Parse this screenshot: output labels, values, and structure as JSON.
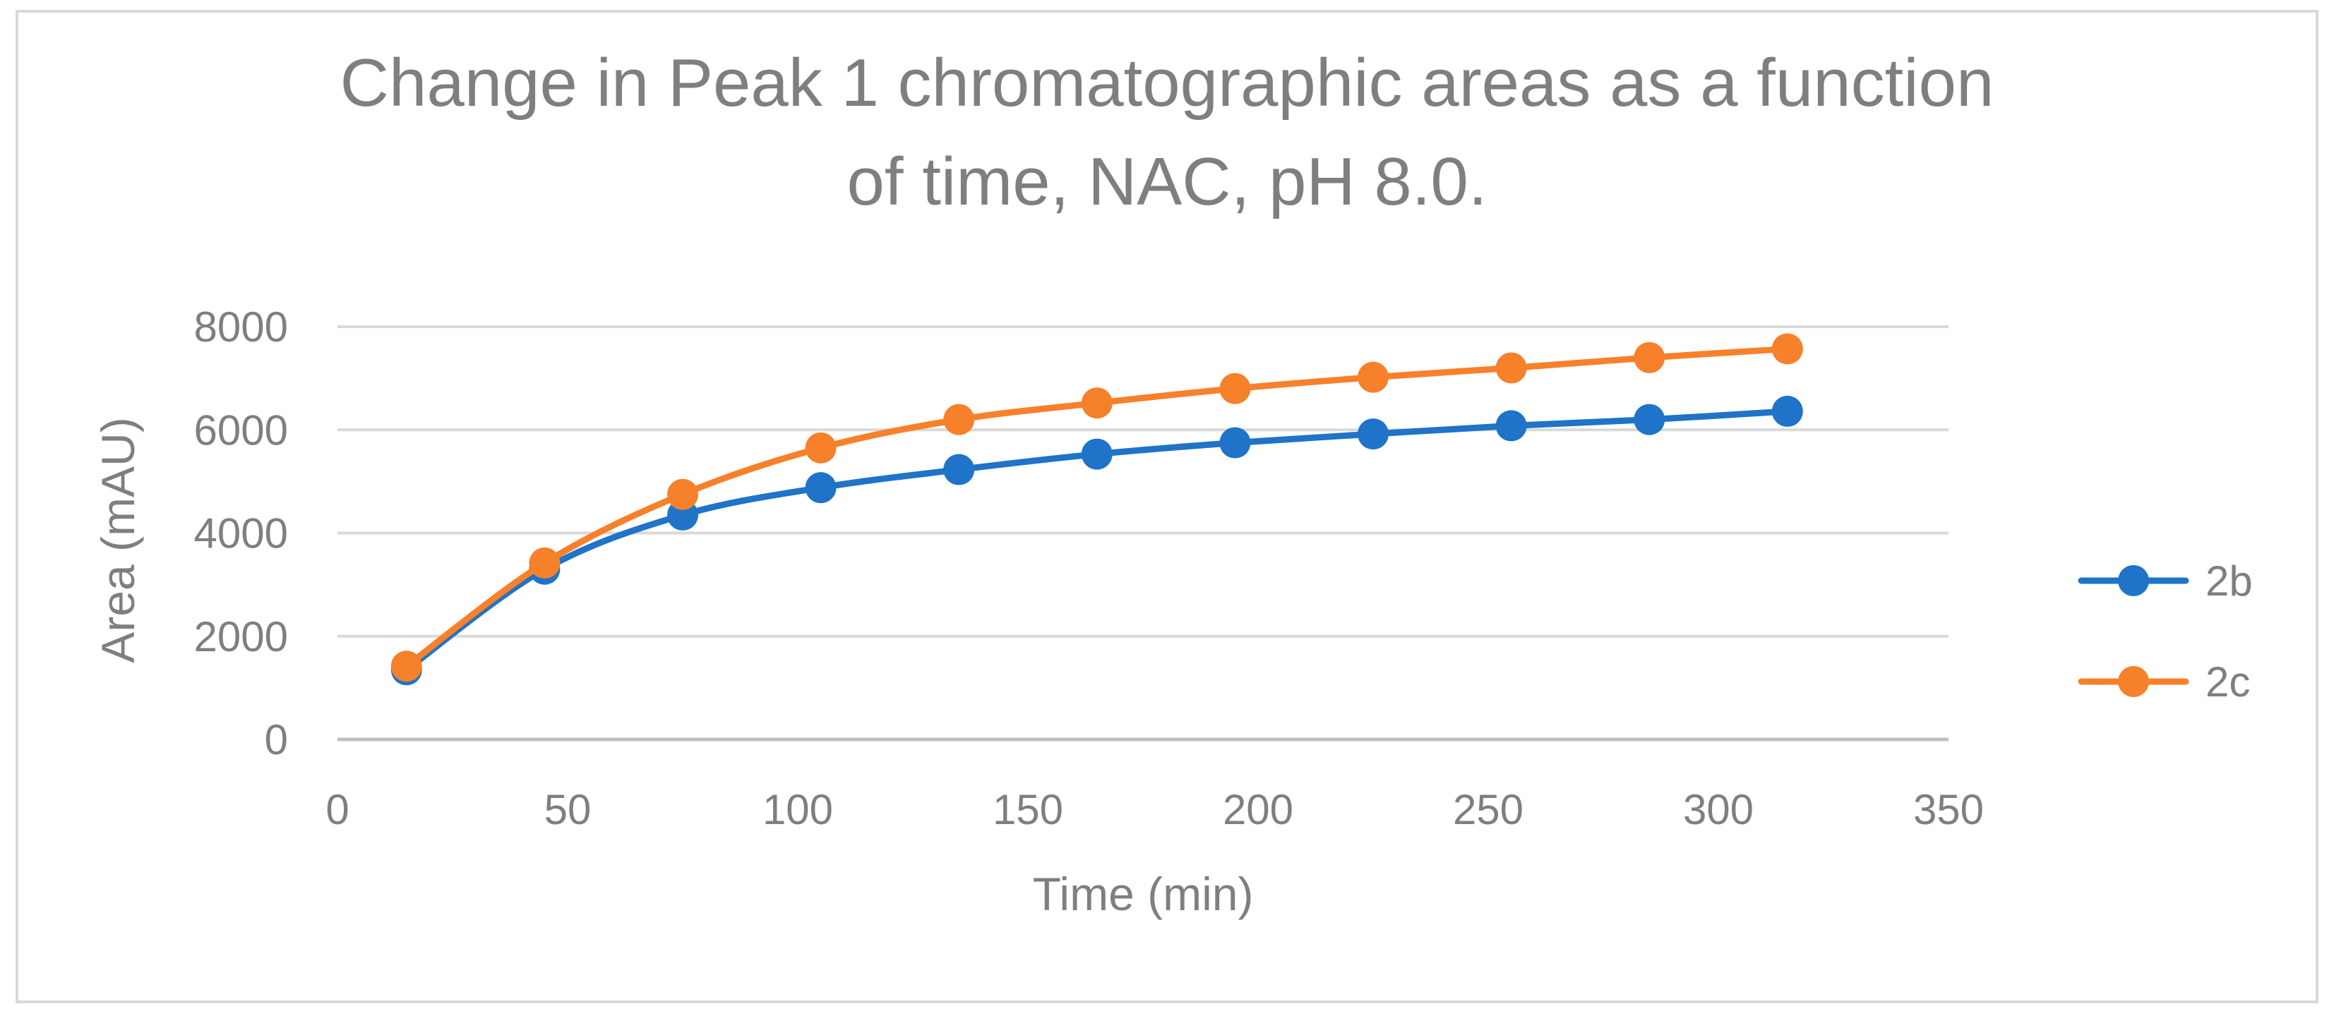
{
  "chart_data": {
    "type": "line",
    "title": "Change in Peak 1 chromatographic areas as a function of time, NAC, pH 8.0.",
    "title_lines": [
      "Change in Peak 1 chromatographic areas as a function",
      "of time, NAC, pH 8.0."
    ],
    "xlabel": "Time (min)",
    "ylabel": "Area (mAU)",
    "xlim": [
      0,
      350
    ],
    "ylim": [
      0,
      8000
    ],
    "x_ticks": [
      0,
      50,
      100,
      150,
      200,
      250,
      300,
      350
    ],
    "y_ticks": [
      0,
      2000,
      4000,
      6000,
      8000
    ],
    "grid": "horizontal",
    "smooth": true,
    "legend_position": "right",
    "x": [
      15,
      45,
      75,
      105,
      135,
      165,
      195,
      225,
      255,
      285,
      315
    ],
    "series": [
      {
        "name": "2b",
        "color": "#1f73c8",
        "values": [
          1350,
          3300,
          4350,
          4880,
          5230,
          5530,
          5750,
          5920,
          6080,
          6200,
          6360
        ]
      },
      {
        "name": "2c",
        "color": "#f7812a",
        "values": [
          1420,
          3420,
          4750,
          5650,
          6200,
          6520,
          6800,
          7020,
          7200,
          7400,
          7570
        ]
      }
    ]
  },
  "style": {
    "gridline_color": "#d9d9d9",
    "axis_color": "#bfbfbf",
    "text_color": "#7f7f7f",
    "frame_color": "#d9d9d9"
  }
}
